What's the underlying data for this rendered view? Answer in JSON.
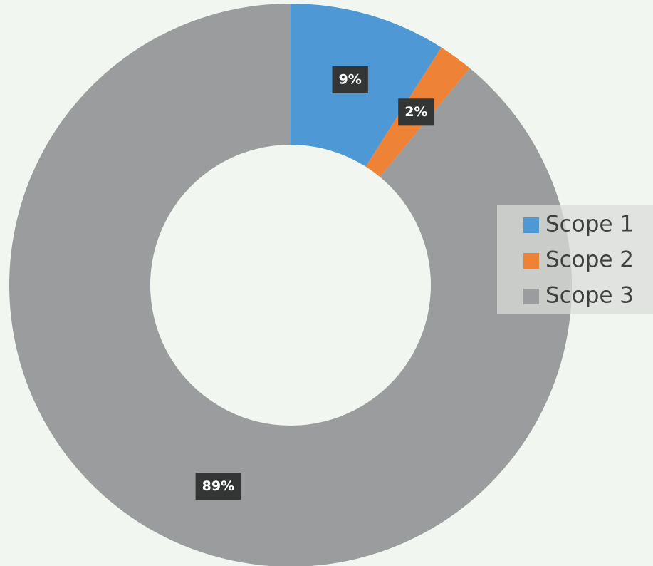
{
  "chart_data": {
    "type": "donut",
    "categories": [
      "Scope 1",
      "Scope 2",
      "Scope 3"
    ],
    "values": [
      9,
      2,
      89
    ],
    "value_labels": [
      "9%",
      "2%",
      "89%"
    ],
    "colors": [
      "#4e98d6",
      "#ee8236",
      "#9a9c9d"
    ],
    "legend": "right"
  }
}
